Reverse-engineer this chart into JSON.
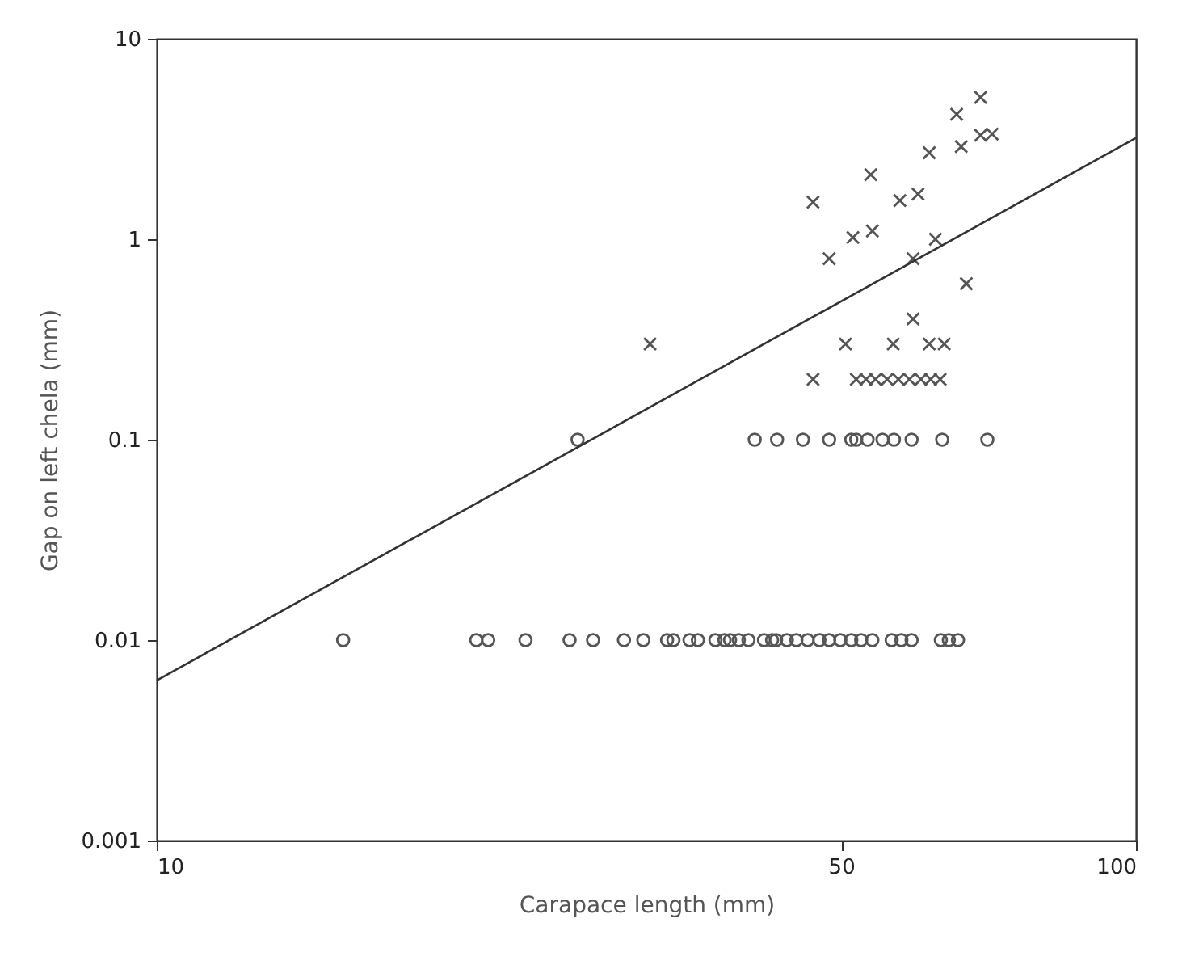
{
  "chart_data": {
    "type": "scatter",
    "xlabel": "Carapace length (mm)",
    "ylabel": "Gap on left chela (mm)",
    "log": "xy",
    "grid": false,
    "xlim": [
      10,
      100
    ],
    "xticks": [
      10,
      50,
      100
    ],
    "ylim": [
      0.001,
      10
    ],
    "yticks": [
      0.001,
      0.01,
      0.1,
      1,
      10
    ],
    "series": [
      {
        "marker": "cross",
        "color": "#555555",
        "x": [
          31.9,
          69.4,
          65.6,
          71.3,
          69.4,
          66.3,
          61.5,
          53.6,
          46.8,
          57.4,
          59.9,
          48.6,
          51.4,
          53.8,
          62.4,
          59.2,
          67.1,
          59.2,
          50.5,
          56.5,
          61.5,
          63.7,
          46.8,
          51.8,
          53.0,
          54.2,
          55.7,
          57.2,
          58.7,
          60.3,
          61.7,
          63.1
        ],
        "values": [
          0.3,
          5.1,
          4.2,
          3.35,
          3.3,
          2.9,
          2.7,
          2.1,
          1.53,
          1.56,
          1.68,
          0.8,
          1.02,
          1.1,
          1.0,
          0.8,
          0.6,
          0.4,
          0.3,
          0.3,
          0.3,
          0.3,
          0.2,
          0.2,
          0.2,
          0.2,
          0.2,
          0.2,
          0.2,
          0.2,
          0.2,
          0.2
        ]
      },
      {
        "marker": "circle",
        "color": "#555555",
        "x": [
          26.9,
          40.8,
          43.0,
          45.7,
          48.6,
          51.2,
          51.8,
          53.2,
          55.1,
          56.6,
          59.0,
          63.4,
          70.5,
          15.5,
          21.2,
          21.8,
          23.8,
          26.4,
          27.9,
          30.0,
          31.4,
          33.2,
          33.7,
          35.0,
          35.7,
          37.2,
          38.0,
          38.5,
          39.3,
          40.2,
          41.7,
          42.5,
          42.9,
          44.0,
          45.0,
          46.2,
          47.5,
          48.6,
          49.9,
          51.2,
          52.4,
          53.8,
          56.3,
          57.6,
          59.0,
          63.2,
          64.4,
          65.8
        ],
        "values": [
          0.1,
          0.1,
          0.1,
          0.1,
          0.1,
          0.1,
          0.1,
          0.1,
          0.1,
          0.1,
          0.1,
          0.1,
          0.1,
          0.01,
          0.01,
          0.01,
          0.01,
          0.01,
          0.01,
          0.01,
          0.01,
          0.01,
          0.01,
          0.01,
          0.01,
          0.01,
          0.01,
          0.01,
          0.01,
          0.01,
          0.01,
          0.01,
          0.01,
          0.01,
          0.01,
          0.01,
          0.01,
          0.01,
          0.01,
          0.01,
          0.01,
          0.01,
          0.01,
          0.01,
          0.01,
          0.01,
          0.01,
          0.01
        ]
      },
      {
        "type": "line",
        "line_style": "solid",
        "color": "#333333",
        "x": [
          10,
          100
        ],
        "values": [
          0.0063,
          3.2
        ]
      }
    ]
  }
}
